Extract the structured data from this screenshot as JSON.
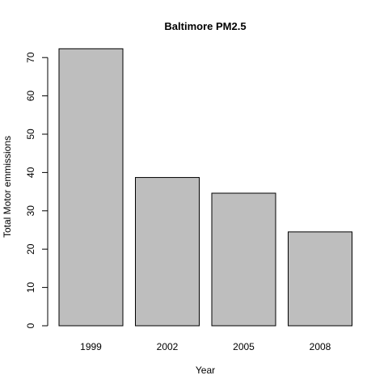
{
  "chart_data": {
    "type": "bar",
    "title": "Baltimore PM2.5",
    "xlabel": "Year",
    "ylabel": "Total Motor emmissions",
    "categories": [
      "1999",
      "2002",
      "2005",
      "2008"
    ],
    "values": [
      72.3,
      38.7,
      34.6,
      24.5
    ],
    "ylim": [
      0,
      70
    ],
    "yticks": [
      0,
      10,
      20,
      30,
      40,
      50,
      60,
      70
    ],
    "grid": false,
    "legend": "none",
    "colors": {
      "bar_fill": "#bebebe",
      "bar_stroke": "#000000",
      "text": "#000000"
    }
  }
}
